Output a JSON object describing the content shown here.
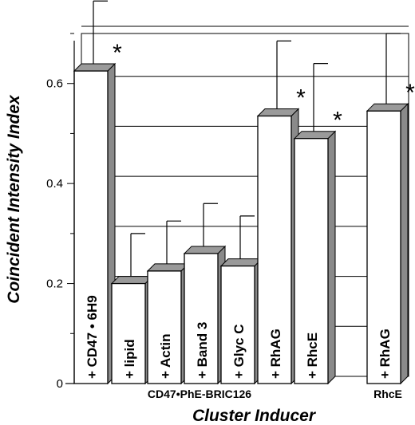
{
  "chart_data": {
    "type": "bar",
    "ylabel": "Coincident Intensity Index",
    "xlabel": "Cluster Inducer",
    "ylim": [
      0,
      0.7
    ],
    "yticks": [
      0,
      0.2,
      0.4,
      0.6
    ],
    "ytick_labels": [
      "0",
      "0.2",
      "0.4",
      "0.6"
    ],
    "grid": true,
    "categories": [
      "+ CD47 • 6H9",
      "+ lipid",
      "+ Actin",
      "+ Band 3",
      "+ Glyc C",
      "+ RhAG",
      "+ RhcE",
      "+ RhAG"
    ],
    "values": [
      0.625,
      0.2,
      0.225,
      0.26,
      0.235,
      0.535,
      0.49,
      0.545
    ],
    "errors": [
      0.14,
      0.1,
      0.1,
      0.1,
      0.1,
      0.15,
      0.15,
      0.155
    ],
    "significant": [
      true,
      false,
      false,
      false,
      false,
      true,
      true,
      true
    ],
    "significance_marker": "*",
    "groups": [
      {
        "label": "CD47•PhE-BRIC126",
        "members": [
          0,
          1,
          2,
          3,
          4,
          5,
          6
        ]
      },
      {
        "label": "RhcE",
        "members": [
          7
        ]
      }
    ]
  }
}
